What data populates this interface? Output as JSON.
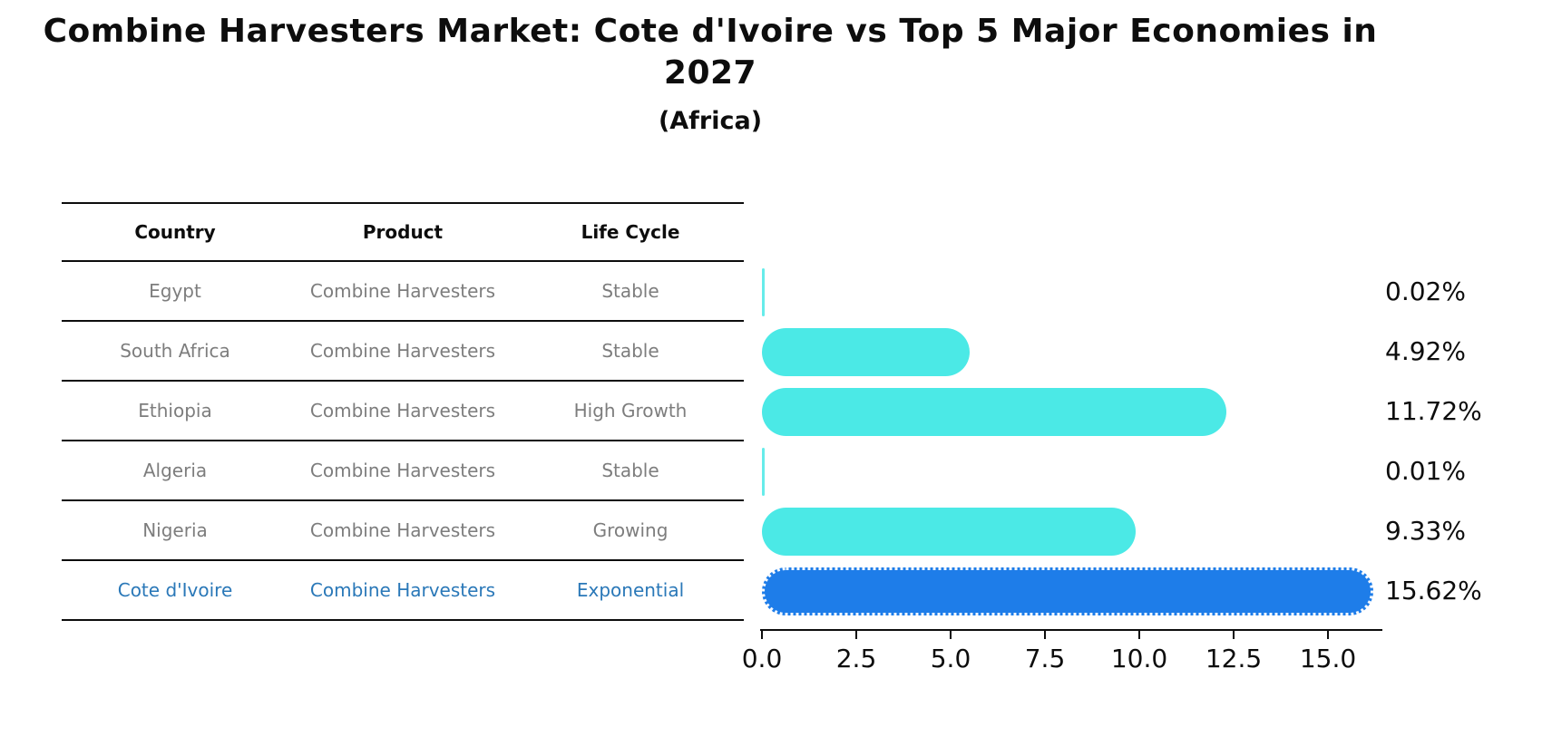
{
  "title": "Combine Harvesters Market: Cote d'Ivoire vs Top 5 Major Economies in 2027",
  "subtitle": "(Africa)",
  "table": {
    "headers": [
      "Country",
      "Product",
      "Life Cycle"
    ],
    "rows": [
      {
        "country": "Egypt",
        "product": "Combine Harvesters",
        "life_cycle": "Stable",
        "highlight": false
      },
      {
        "country": "South Africa",
        "product": "Combine Harvesters",
        "life_cycle": "Stable",
        "highlight": false
      },
      {
        "country": "Ethiopia",
        "product": "Combine Harvesters",
        "life_cycle": "High Growth",
        "highlight": false
      },
      {
        "country": "Algeria",
        "product": "Combine Harvesters",
        "life_cycle": "Stable",
        "highlight": false
      },
      {
        "country": "Nigeria",
        "product": "Combine Harvesters",
        "life_cycle": "Growing",
        "highlight": false
      },
      {
        "country": "Cote d'Ivoire",
        "product": "Combine Harvesters",
        "life_cycle": "Exponential",
        "highlight": true
      }
    ]
  },
  "chart_data": {
    "type": "bar",
    "orientation": "horizontal",
    "title": "Combine Harvesters Market: Cote d'Ivoire vs Top 5 Major Economies in 2027",
    "subtitle": "(Africa)",
    "categories": [
      "Egypt",
      "South Africa",
      "Ethiopia",
      "Algeria",
      "Nigeria",
      "Cote d'Ivoire"
    ],
    "values": [
      0.02,
      4.92,
      11.72,
      0.01,
      9.33,
      15.62
    ],
    "value_labels": [
      "0.02%",
      "4.92%",
      "11.72%",
      "0.01%",
      "9.33%",
      "15.62%"
    ],
    "highlight_index": 5,
    "xlim": [
      0,
      16.4
    ],
    "xticks": [
      0,
      2.5,
      5,
      7.5,
      10,
      12.5,
      15
    ],
    "xtick_labels": [
      "0.0",
      "2.5",
      "5.0",
      "7.5",
      "10.0",
      "12.5",
      "15.0"
    ],
    "grid": false,
    "legend": "none",
    "xlabel": "",
    "ylabel": ""
  },
  "colors": {
    "bar_cyan": "#4be9e6",
    "bar_blue": "#1e7de9",
    "highlight_text": "#2a78b8",
    "row_text": "#7d7d7d",
    "heading_text": "#0d0d0d",
    "axis": "#0d0d0d",
    "background": "#ffffff"
  }
}
